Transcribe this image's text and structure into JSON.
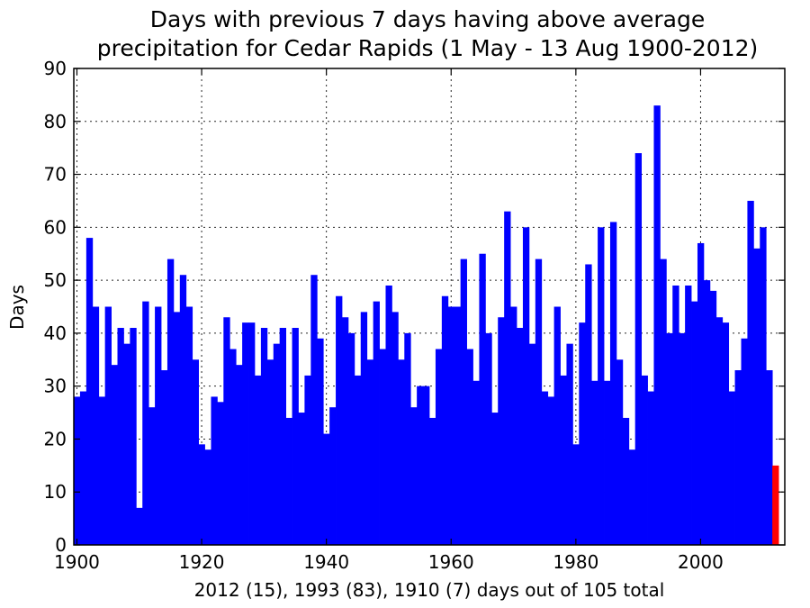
{
  "chart_data": {
    "type": "bar",
    "title": "Days with previous 7 days having above average precipitation for Cedar Rapids (1 May - 13 Aug 1900-2012)",
    "title_lines": [
      "Days with previous 7 days having above average",
      "precipitation for Cedar Rapids (1 May - 13 Aug 1900-2012)"
    ],
    "xlabel": "2012 (15), 1993 (83), 1910 (7) days out of 105 total",
    "ylabel": "Days",
    "xlim": [
      1899.5,
      2013.5
    ],
    "ylim": [
      0,
      90
    ],
    "xticks": [
      1900,
      1920,
      1940,
      1960,
      1980,
      2000
    ],
    "yticks": [
      0,
      10,
      20,
      30,
      40,
      50,
      60,
      70,
      80,
      90
    ],
    "grid": true,
    "colors": {
      "bars": "#0000ff",
      "highlight": "#ff0000"
    },
    "highlight_year": 2012,
    "x": [
      1900,
      1901,
      1902,
      1903,
      1904,
      1905,
      1906,
      1907,
      1908,
      1909,
      1910,
      1911,
      1912,
      1913,
      1914,
      1915,
      1916,
      1917,
      1918,
      1919,
      1920,
      1921,
      1922,
      1923,
      1924,
      1925,
      1926,
      1927,
      1928,
      1929,
      1930,
      1931,
      1932,
      1933,
      1934,
      1935,
      1936,
      1937,
      1938,
      1939,
      1940,
      1941,
      1942,
      1943,
      1944,
      1945,
      1946,
      1947,
      1948,
      1949,
      1950,
      1951,
      1952,
      1953,
      1954,
      1955,
      1956,
      1957,
      1958,
      1959,
      1960,
      1961,
      1962,
      1963,
      1964,
      1965,
      1966,
      1967,
      1968,
      1969,
      1970,
      1971,
      1972,
      1973,
      1974,
      1975,
      1976,
      1977,
      1978,
      1979,
      1980,
      1981,
      1982,
      1983,
      1984,
      1985,
      1986,
      1987,
      1988,
      1989,
      1990,
      1991,
      1992,
      1993,
      1994,
      1995,
      1996,
      1997,
      1998,
      1999,
      2000,
      2001,
      2002,
      2003,
      2004,
      2005,
      2006,
      2007,
      2008,
      2009,
      2010,
      2011,
      2012
    ],
    "values": [
      28,
      29,
      58,
      45,
      28,
      45,
      34,
      41,
      38,
      41,
      7,
      46,
      26,
      45,
      33,
      54,
      44,
      51,
      45,
      35,
      19,
      18,
      28,
      27,
      43,
      37,
      34,
      42,
      42,
      32,
      41,
      35,
      38,
      41,
      24,
      41,
      25,
      32,
      51,
      39,
      21,
      26,
      47,
      43,
      40,
      32,
      44,
      35,
      46,
      37,
      49,
      44,
      35,
      40,
      26,
      30,
      30,
      24,
      37,
      47,
      45,
      45,
      54,
      37,
      31,
      55,
      40,
      25,
      43,
      63,
      45,
      41,
      60,
      38,
      54,
      29,
      28,
      45,
      32,
      38,
      19,
      42,
      53,
      31,
      60,
      31,
      61,
      35,
      24,
      18,
      74,
      32,
      29,
      83,
      54,
      40,
      49,
      40,
      49,
      46,
      57,
      50,
      48,
      43,
      42,
      29,
      33,
      39,
      65,
      56,
      60,
      33,
      15
    ]
  }
}
